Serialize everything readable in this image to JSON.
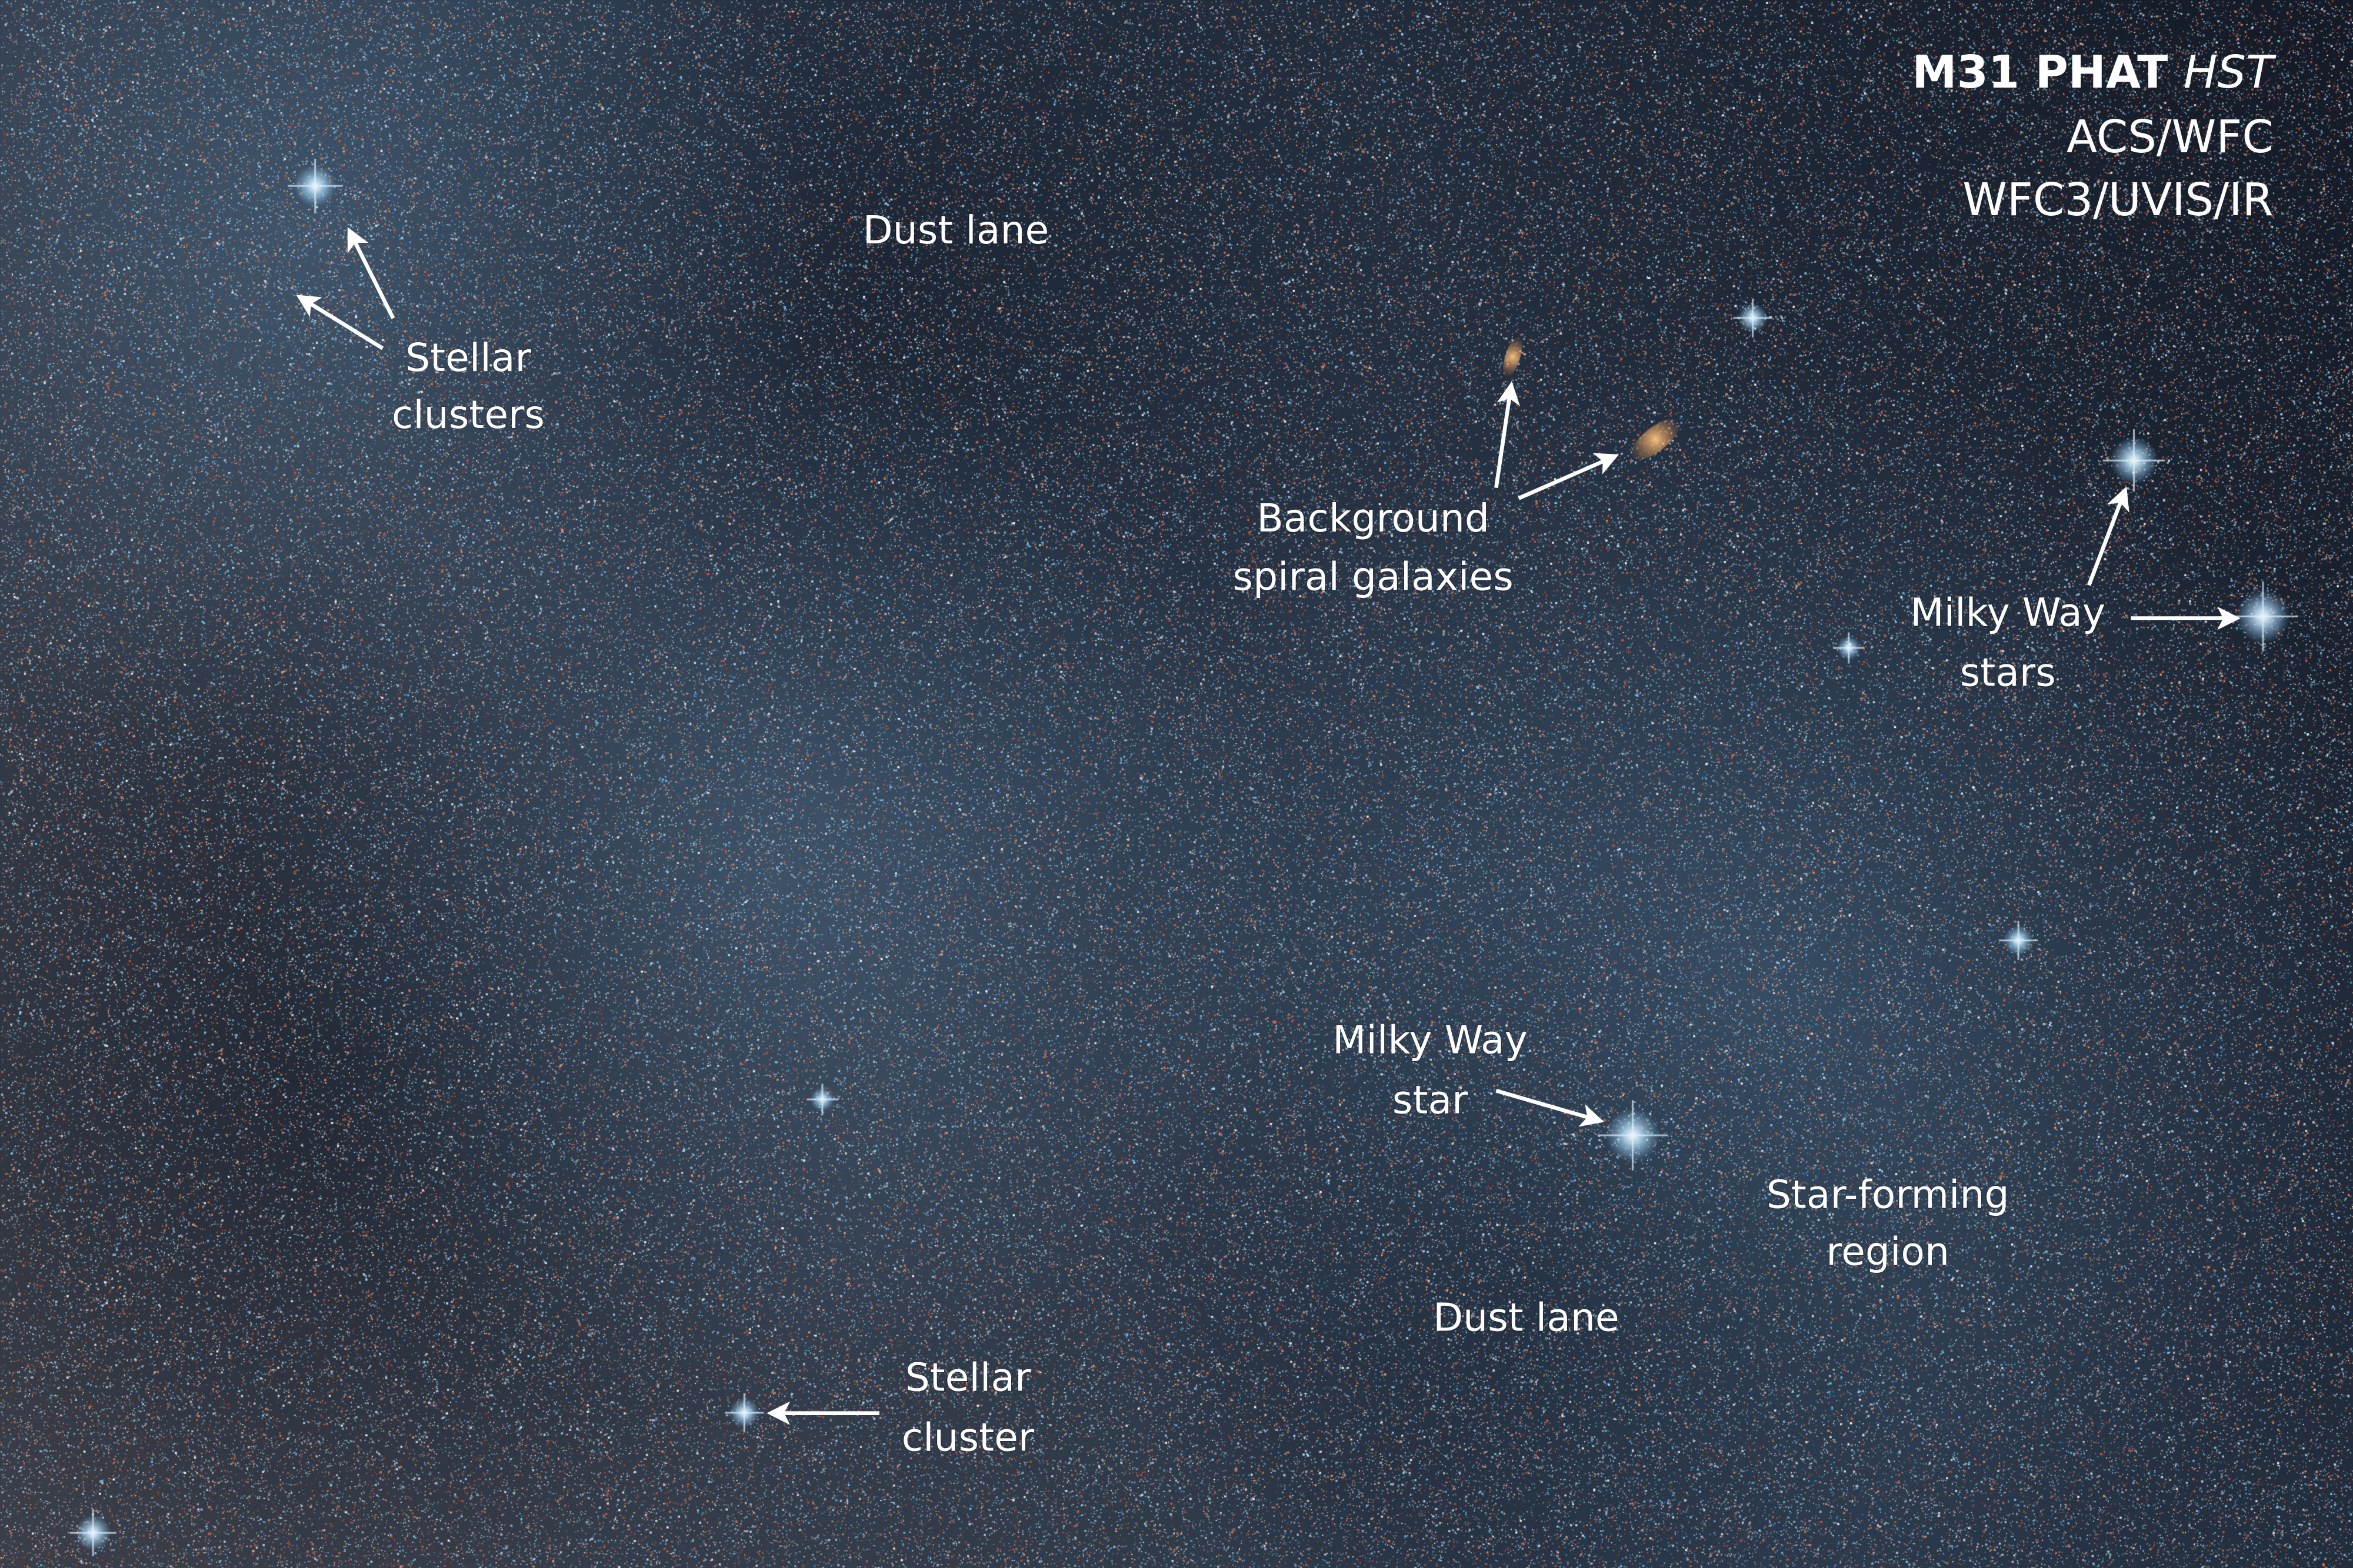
{
  "image": {
    "subject": "M31 PHAT HST field",
    "colors": {
      "background": "#2a3a4c",
      "blue_stars": "#8fd8ff",
      "red_stars": "#e0704a",
      "label": "#ffffff"
    }
  },
  "title": {
    "line1_main": "M31 PHAT ",
    "line1_italic": "HST",
    "line2": "ACS/WFC",
    "line3": "WFC3/UVIS/IR"
  },
  "labels": {
    "dust_lane_top": "Dust lane",
    "stellar_clusters": [
      "Stellar",
      "clusters"
    ],
    "background_galaxies": [
      "Background",
      "spiral galaxies"
    ],
    "milky_way_stars": [
      "Milky Way",
      "stars"
    ],
    "milky_way_star": [
      "Milky Way",
      "star"
    ],
    "star_forming_region": [
      "Star-forming",
      "region"
    ],
    "dust_lane_bottom": "Dust lane",
    "stellar_cluster": [
      "Stellar",
      "cluster"
    ]
  }
}
